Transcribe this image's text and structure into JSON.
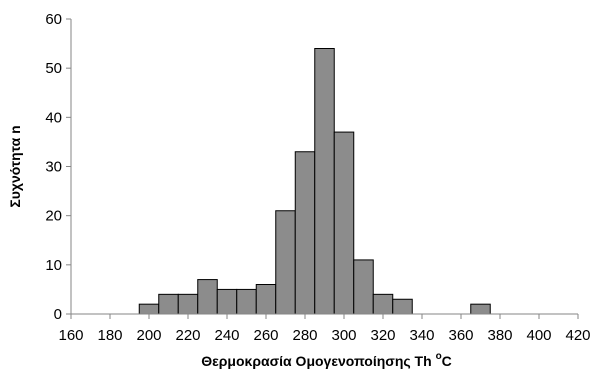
{
  "chart_data": {
    "type": "bar",
    "title": "",
    "xlabel": "Θερμοκρασία Ομογενοποίησης Th °C",
    "xlabel_main": "Θερμοκρασία Ομογενοποίησης Th ",
    "xlabel_sup": "o",
    "xlabel_unit": "C",
    "ylabel": "Συχνότητα n",
    "xlim": [
      160,
      420
    ],
    "ylim": [
      0,
      60
    ],
    "x_ticks": [
      160,
      180,
      200,
      220,
      240,
      260,
      280,
      300,
      320,
      340,
      360,
      380,
      400,
      420
    ],
    "y_ticks": [
      0,
      10,
      20,
      30,
      40,
      50,
      60
    ],
    "bin_width": 10,
    "bins": [
      {
        "x": 200,
        "value": 2
      },
      {
        "x": 210,
        "value": 4
      },
      {
        "x": 220,
        "value": 4
      },
      {
        "x": 230,
        "value": 7
      },
      {
        "x": 240,
        "value": 5
      },
      {
        "x": 250,
        "value": 5
      },
      {
        "x": 260,
        "value": 6
      },
      {
        "x": 270,
        "value": 21
      },
      {
        "x": 280,
        "value": 33
      },
      {
        "x": 290,
        "value": 54
      },
      {
        "x": 300,
        "value": 37
      },
      {
        "x": 310,
        "value": 11
      },
      {
        "x": 320,
        "value": 4
      },
      {
        "x": 330,
        "value": 3
      },
      {
        "x": 370,
        "value": 2
      }
    ],
    "bar_color": "#8c8c8c",
    "axis_color": "#868686",
    "grid": false,
    "legend": "none"
  }
}
